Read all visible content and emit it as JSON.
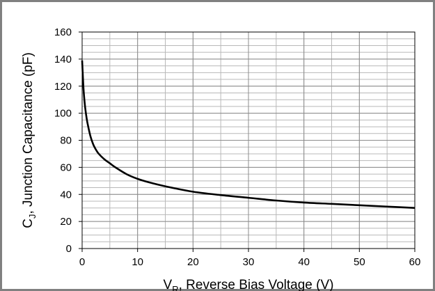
{
  "chart_data": {
    "type": "line",
    "title": "",
    "xlabel": "V",
    "xlabel_subscript": "R",
    "xlabel_rest": ", Reverse Bias Voltage (V)",
    "ylabel": "C",
    "ylabel_subscript": "J",
    "ylabel_rest": ", Junction Capacitance (pF)",
    "xlim": [
      0,
      60
    ],
    "ylim": [
      0,
      160
    ],
    "x_ticks": [
      0,
      10,
      20,
      30,
      40,
      50,
      60
    ],
    "y_ticks": [
      0,
      20,
      40,
      60,
      80,
      100,
      120,
      140,
      160
    ],
    "x_ticks_text": [
      "0",
      "10",
      "20",
      "30",
      "40",
      "50",
      "60"
    ],
    "y_ticks_text": [
      "0",
      "20",
      "40",
      "60",
      "80",
      "100",
      "120",
      "140",
      "160"
    ],
    "grid": true,
    "legend": "none",
    "colors": {
      "line": "#000000",
      "grid": "#b8b8b8",
      "frame": "#808080"
    },
    "series": [
      {
        "x": [
          0,
          0.25,
          0.5,
          0.75,
          1,
          1.5,
          2,
          2.5,
          3,
          4,
          5,
          6,
          8,
          10,
          12,
          15,
          20,
          25,
          30,
          35,
          40,
          45,
          50,
          55,
          60
        ],
        "y": [
          139,
          118,
          106,
          98,
          92,
          83,
          77,
          73,
          70,
          66,
          63,
          60,
          55,
          51.5,
          49,
          46,
          42,
          39.5,
          37.5,
          35.5,
          34,
          33,
          32,
          31,
          30
        ]
      }
    ]
  }
}
